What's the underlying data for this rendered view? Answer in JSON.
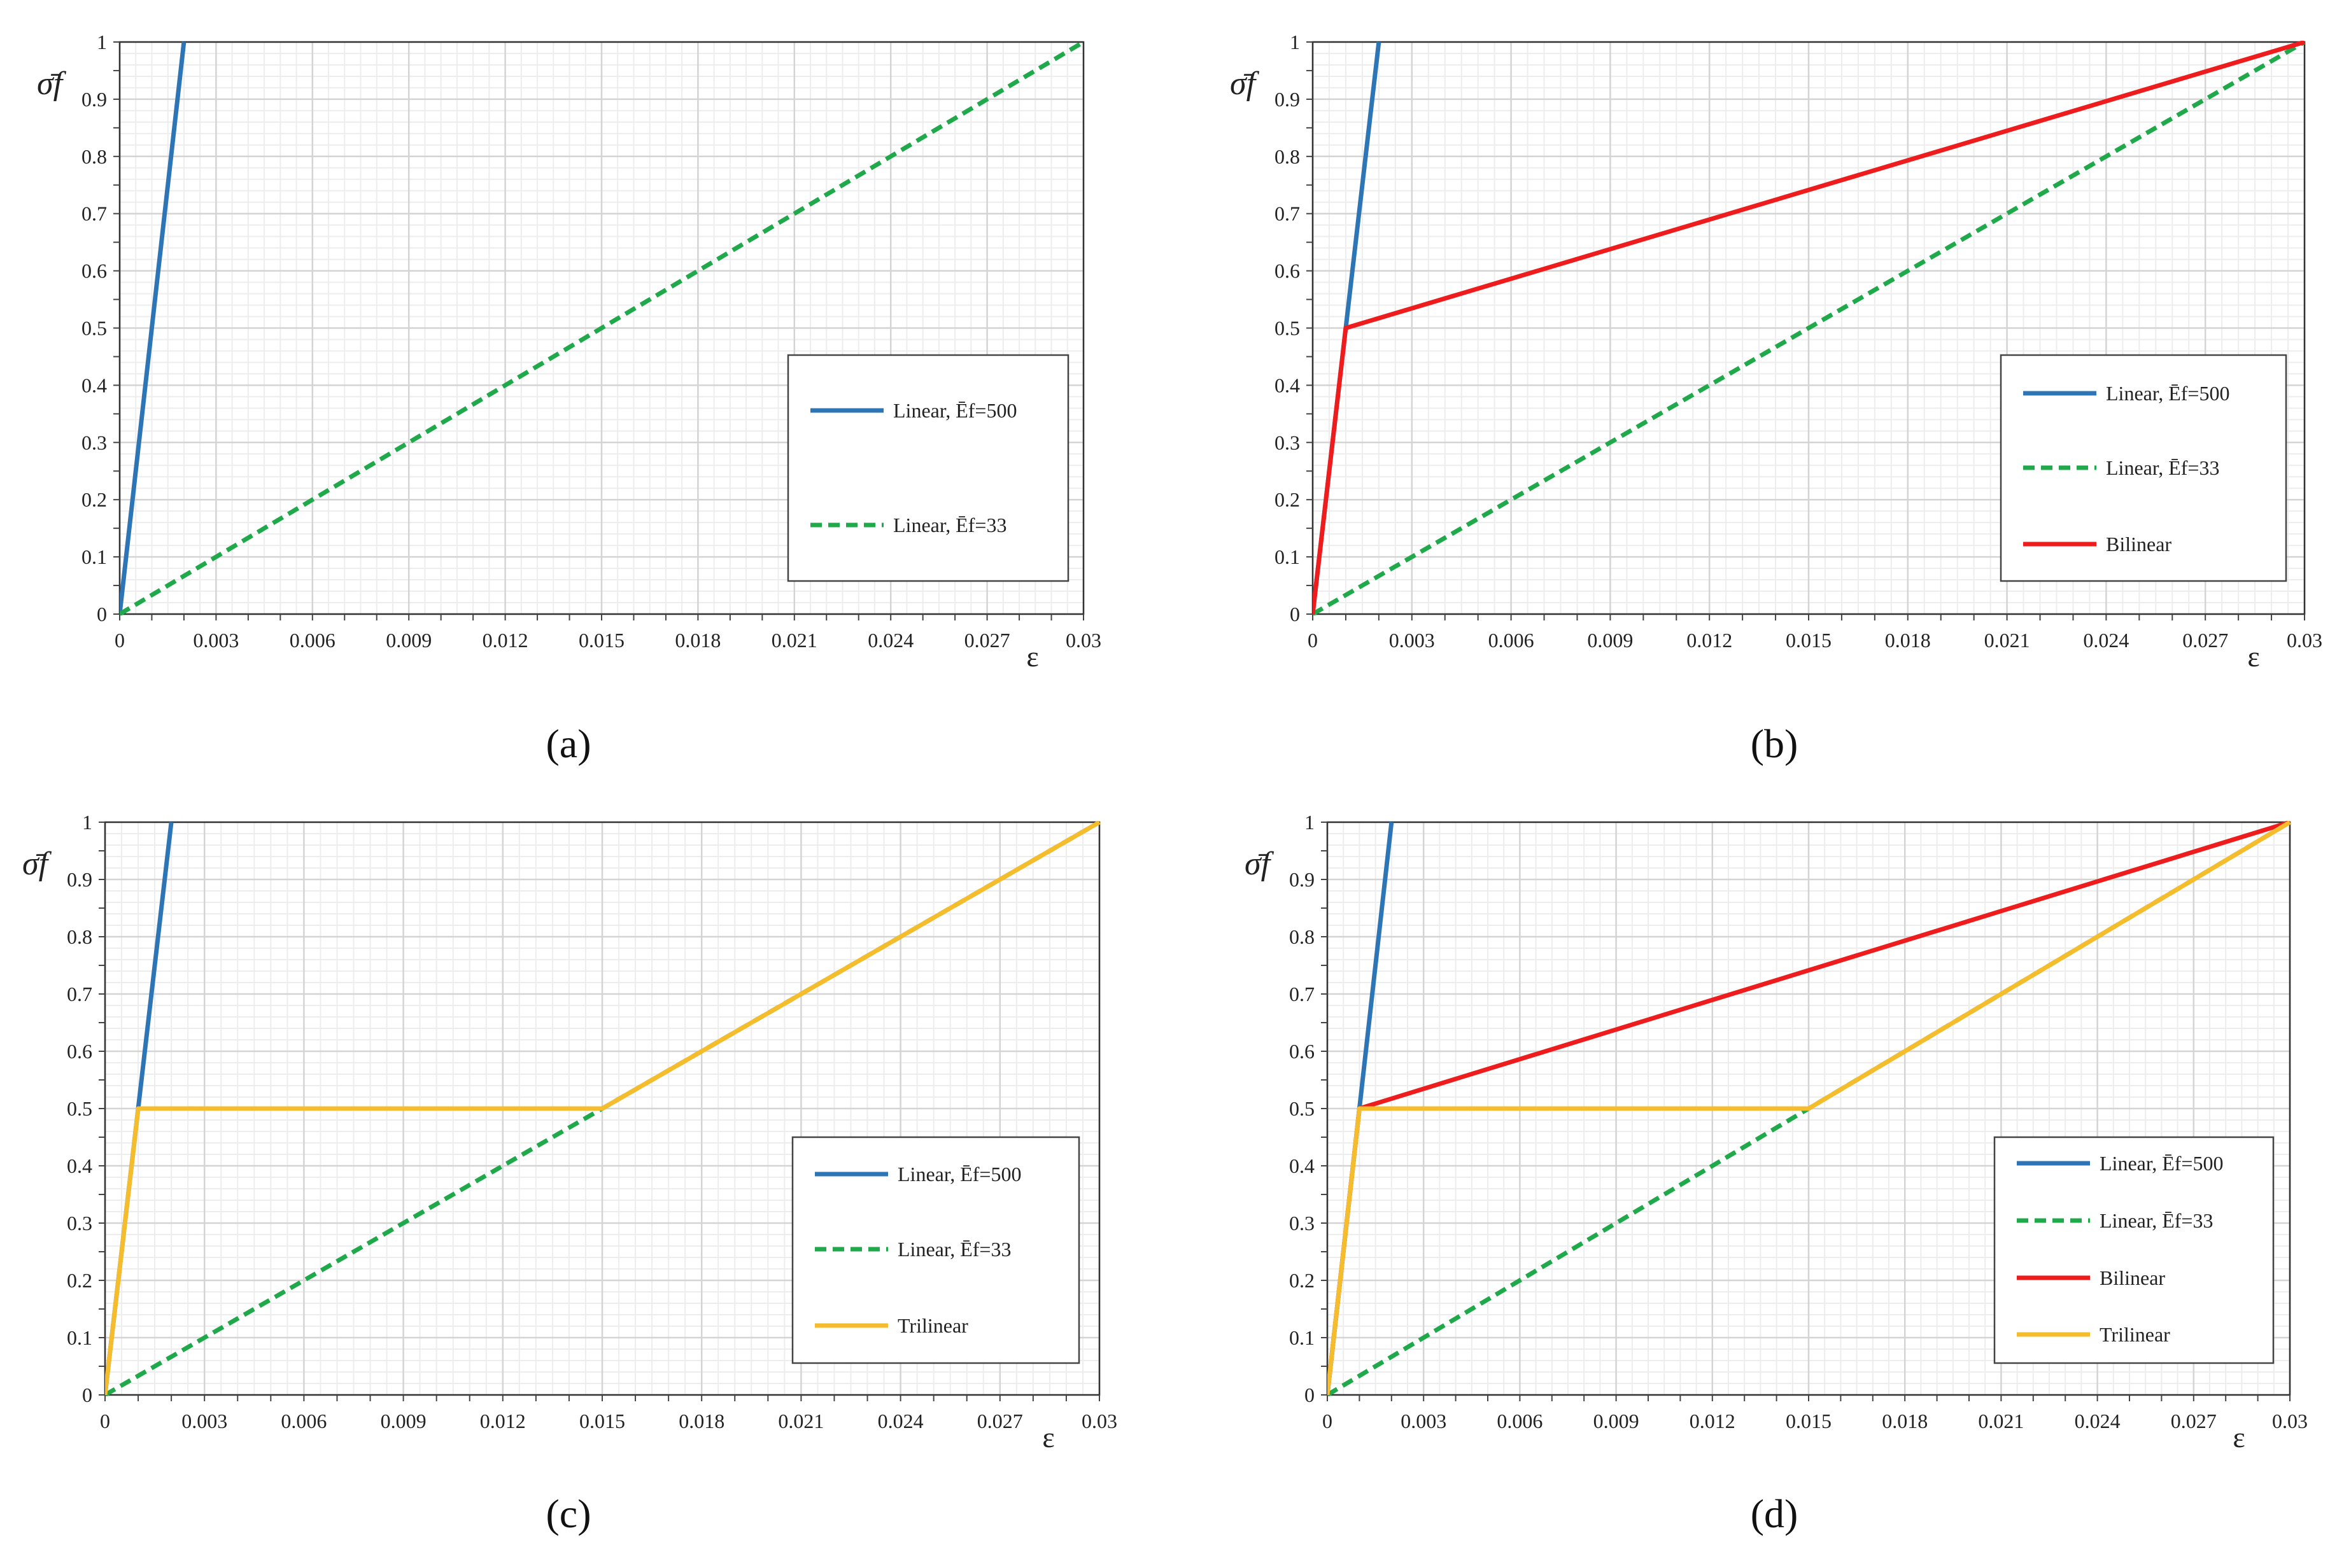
{
  "figure": {
    "panels": [
      {
        "caption": "(a)"
      },
      {
        "caption": "(b)"
      },
      {
        "caption": "(c)"
      },
      {
        "caption": "(d)"
      }
    ]
  },
  "chart_data": [
    {
      "type": "line",
      "panel": "a",
      "ylabel": "σ̄f",
      "xlabel": "ε",
      "xlim": [
        0,
        0.03
      ],
      "ylim": [
        0,
        1
      ],
      "xticks": [
        0,
        0.003,
        0.006,
        0.009,
        0.012,
        0.015,
        0.018,
        0.021,
        0.024,
        0.027,
        0.03
      ],
      "xtick_labels": [
        "0",
        "0.003",
        "0.006",
        "0.009",
        "0.012",
        "0.015",
        "0.018",
        "0.021",
        "0.024",
        "0.027",
        "0.03"
      ],
      "yticks": [
        0,
        0.1,
        0.2,
        0.3,
        0.4,
        0.5,
        0.6,
        0.7,
        0.8,
        0.9,
        1
      ],
      "ytick_labels": [
        "0",
        "0.1",
        "0.2",
        "0.3",
        "0.4",
        "0.5",
        "0.6",
        "0.7",
        "0.8",
        "0.9",
        "1"
      ],
      "grid": true,
      "legend_position": "right",
      "series": [
        {
          "name": "Linear, Ēf=500",
          "color": "#2E75B6",
          "style": "solid",
          "x": [
            0,
            0.002
          ],
          "y": [
            0,
            1
          ]
        },
        {
          "name": "Linear, Ēf=33",
          "color": "#1FA94B",
          "style": "dashed",
          "x": [
            0,
            0.03
          ],
          "y": [
            0,
            1
          ]
        }
      ]
    },
    {
      "type": "line",
      "panel": "b",
      "ylabel": "σ̄f",
      "xlabel": "ε",
      "xlim": [
        0,
        0.03
      ],
      "ylim": [
        0,
        1
      ],
      "xticks": [
        0,
        0.003,
        0.006,
        0.009,
        0.012,
        0.015,
        0.018,
        0.021,
        0.024,
        0.027,
        0.03
      ],
      "xtick_labels": [
        "0",
        "0.003",
        "0.006",
        "0.009",
        "0.012",
        "0.015",
        "0.018",
        "0.021",
        "0.024",
        "0.027",
        "0.03"
      ],
      "yticks": [
        0,
        0.1,
        0.2,
        0.3,
        0.4,
        0.5,
        0.6,
        0.7,
        0.8,
        0.9,
        1
      ],
      "ytick_labels": [
        "0",
        "0.1",
        "0.2",
        "0.3",
        "0.4",
        "0.5",
        "0.6",
        "0.7",
        "0.8",
        "0.9",
        "1"
      ],
      "grid": true,
      "legend_position": "right",
      "series": [
        {
          "name": "Linear, Ēf=500",
          "color": "#2E75B6",
          "style": "solid",
          "x": [
            0,
            0.002
          ],
          "y": [
            0,
            1
          ]
        },
        {
          "name": "Linear, Ēf=33",
          "color": "#1FA94B",
          "style": "dashed",
          "x": [
            0,
            0.03
          ],
          "y": [
            0,
            1
          ]
        },
        {
          "name": "Bilinear",
          "color": "#EE1C1C",
          "style": "solid",
          "x": [
            0,
            0.001,
            0.03
          ],
          "y": [
            0,
            0.5,
            1
          ]
        }
      ]
    },
    {
      "type": "line",
      "panel": "c",
      "ylabel": "σ̄f",
      "xlabel": "ε",
      "xlim": [
        0,
        0.03
      ],
      "ylim": [
        0,
        1
      ],
      "xticks": [
        0,
        0.003,
        0.006,
        0.009,
        0.012,
        0.015,
        0.018,
        0.021,
        0.024,
        0.027,
        0.03
      ],
      "xtick_labels": [
        "0",
        "0.003",
        "0.006",
        "0.009",
        "0.012",
        "0.015",
        "0.018",
        "0.021",
        "0.024",
        "0.027",
        "0.03"
      ],
      "yticks": [
        0,
        0.1,
        0.2,
        0.3,
        0.4,
        0.5,
        0.6,
        0.7,
        0.8,
        0.9,
        1
      ],
      "ytick_labels": [
        "0",
        "0.1",
        "0.2",
        "0.3",
        "0.4",
        "0.5",
        "0.6",
        "0.7",
        "0.8",
        "0.9",
        "1"
      ],
      "grid": true,
      "legend_position": "right",
      "series": [
        {
          "name": "Linear, Ēf=500",
          "color": "#2E75B6",
          "style": "solid",
          "x": [
            0,
            0.002
          ],
          "y": [
            0,
            1
          ]
        },
        {
          "name": "Linear, Ēf=33",
          "color": "#1FA94B",
          "style": "dashed",
          "x": [
            0,
            0.03
          ],
          "y": [
            0,
            1
          ]
        },
        {
          "name": "Trilinear",
          "color": "#F5BD2C",
          "style": "solid",
          "x": [
            0,
            0.001,
            0.015,
            0.03
          ],
          "y": [
            0,
            0.5,
            0.5,
            1
          ]
        }
      ]
    },
    {
      "type": "line",
      "panel": "d",
      "ylabel": "σ̄f",
      "xlabel": "ε",
      "xlim": [
        0,
        0.03
      ],
      "ylim": [
        0,
        1
      ],
      "xticks": [
        0,
        0.003,
        0.006,
        0.009,
        0.012,
        0.015,
        0.018,
        0.021,
        0.024,
        0.027,
        0.03
      ],
      "xtick_labels": [
        "0",
        "0.003",
        "0.006",
        "0.009",
        "0.012",
        "0.015",
        "0.018",
        "0.021",
        "0.024",
        "0.027",
        "0.03"
      ],
      "yticks": [
        0,
        0.1,
        0.2,
        0.3,
        0.4,
        0.5,
        0.6,
        0.7,
        0.8,
        0.9,
        1
      ],
      "ytick_labels": [
        "0",
        "0.1",
        "0.2",
        "0.3",
        "0.4",
        "0.5",
        "0.6",
        "0.7",
        "0.8",
        "0.9",
        "1"
      ],
      "grid": true,
      "legend_position": "right",
      "series": [
        {
          "name": "Linear, Ēf=500",
          "color": "#2E75B6",
          "style": "solid",
          "x": [
            0,
            0.002
          ],
          "y": [
            0,
            1
          ]
        },
        {
          "name": "Linear, Ēf=33",
          "color": "#1FA94B",
          "style": "dashed",
          "x": [
            0,
            0.03
          ],
          "y": [
            0,
            1
          ]
        },
        {
          "name": "Bilinear",
          "color": "#EE1C1C",
          "style": "solid",
          "x": [
            0,
            0.001,
            0.03
          ],
          "y": [
            0,
            0.5,
            1
          ]
        },
        {
          "name": "Trilinear",
          "color": "#F5BD2C",
          "style": "solid",
          "x": [
            0,
            0.001,
            0.015,
            0.03
          ],
          "y": [
            0,
            0.5,
            0.5,
            1
          ]
        }
      ]
    }
  ]
}
